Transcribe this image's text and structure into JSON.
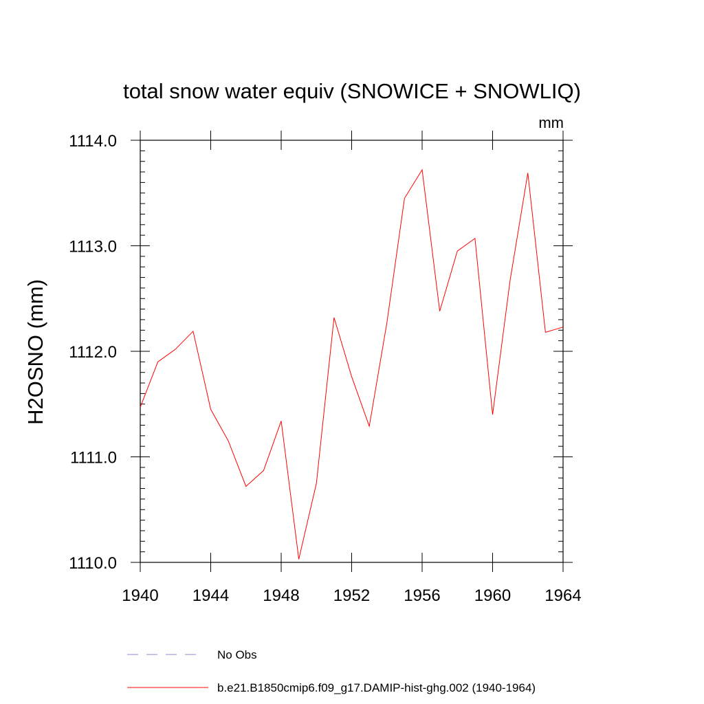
{
  "chart_data": {
    "type": "line",
    "title": "total snow water equiv (SNOWICE + SNOWLIQ)",
    "units": "mm",
    "ylabel": "H2OSNO  (mm)",
    "xlabel": "",
    "xlim": [
      1940,
      1964
    ],
    "ylim": [
      1110.0,
      1114.0
    ],
    "x_ticks": [
      1940,
      1944,
      1948,
      1952,
      1956,
      1960,
      1964
    ],
    "x_tick_labels": [
      "1940",
      "1944",
      "1948",
      "1952",
      "1956",
      "1960",
      "1964"
    ],
    "y_ticks": [
      1110.0,
      1111.0,
      1112.0,
      1113.0,
      1114.0
    ],
    "y_tick_labels": [
      "1110.0",
      "1111.0",
      "1112.0",
      "1113.0",
      "1114.0"
    ],
    "grid": false,
    "legend_position": "bottom",
    "series": [
      {
        "name": "No Obs",
        "color": "#8888cc",
        "style": "dashed",
        "x": [],
        "values": []
      },
      {
        "name": "b.e21.B1850cmip6.f09_g17.DAMIP-hist-ghg.002 (1940-1964)",
        "color": "#ff0000",
        "style": "solid",
        "x": [
          1940,
          1941,
          1942,
          1943,
          1944,
          1945,
          1946,
          1947,
          1948,
          1949,
          1950,
          1951,
          1952,
          1953,
          1954,
          1955,
          1956,
          1957,
          1958,
          1959,
          1960,
          1961,
          1962,
          1963,
          1964
        ],
        "values": [
          1111.47,
          1111.9,
          1112.02,
          1112.19,
          1111.45,
          1111.15,
          1110.72,
          1110.87,
          1111.34,
          1110.03,
          1110.75,
          1112.32,
          1111.76,
          1111.29,
          1112.27,
          1113.45,
          1113.72,
          1112.38,
          1112.95,
          1113.07,
          1111.4,
          1112.68,
          1113.69,
          1112.18,
          1112.23
        ]
      }
    ]
  }
}
